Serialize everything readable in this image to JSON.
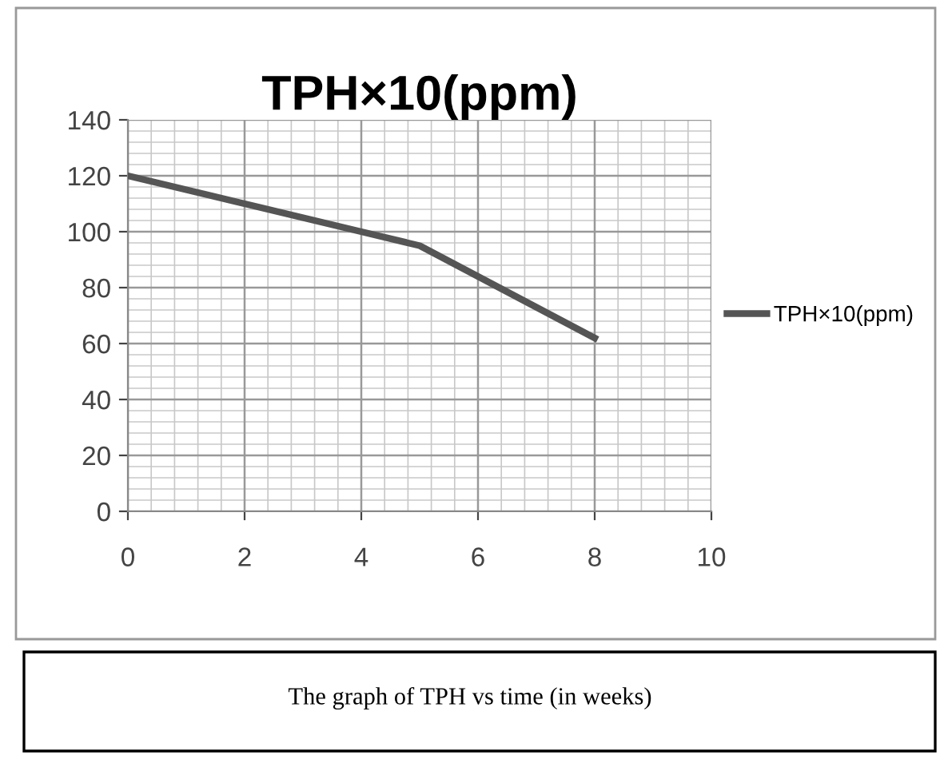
{
  "chart_data": {
    "type": "line",
    "title": "TPH×10(ppm)",
    "x": [
      0,
      2,
      4,
      5,
      8
    ],
    "series": [
      {
        "name": "TPH×10(ppm)",
        "color": "#555555",
        "values": [
          120,
          110,
          100,
          95,
          62
        ]
      }
    ],
    "xlim": [
      0,
      10
    ],
    "xticks": [
      0,
      2,
      4,
      6,
      8,
      10
    ],
    "ylim": [
      0,
      140
    ],
    "yticks": [
      0,
      20,
      40,
      60,
      80,
      100,
      120,
      140
    ],
    "grid": true,
    "legend": "right",
    "marker": "none",
    "line_style": "solid",
    "annotations": [
      "The graph of TPH vs time (in weeks)"
    ]
  }
}
